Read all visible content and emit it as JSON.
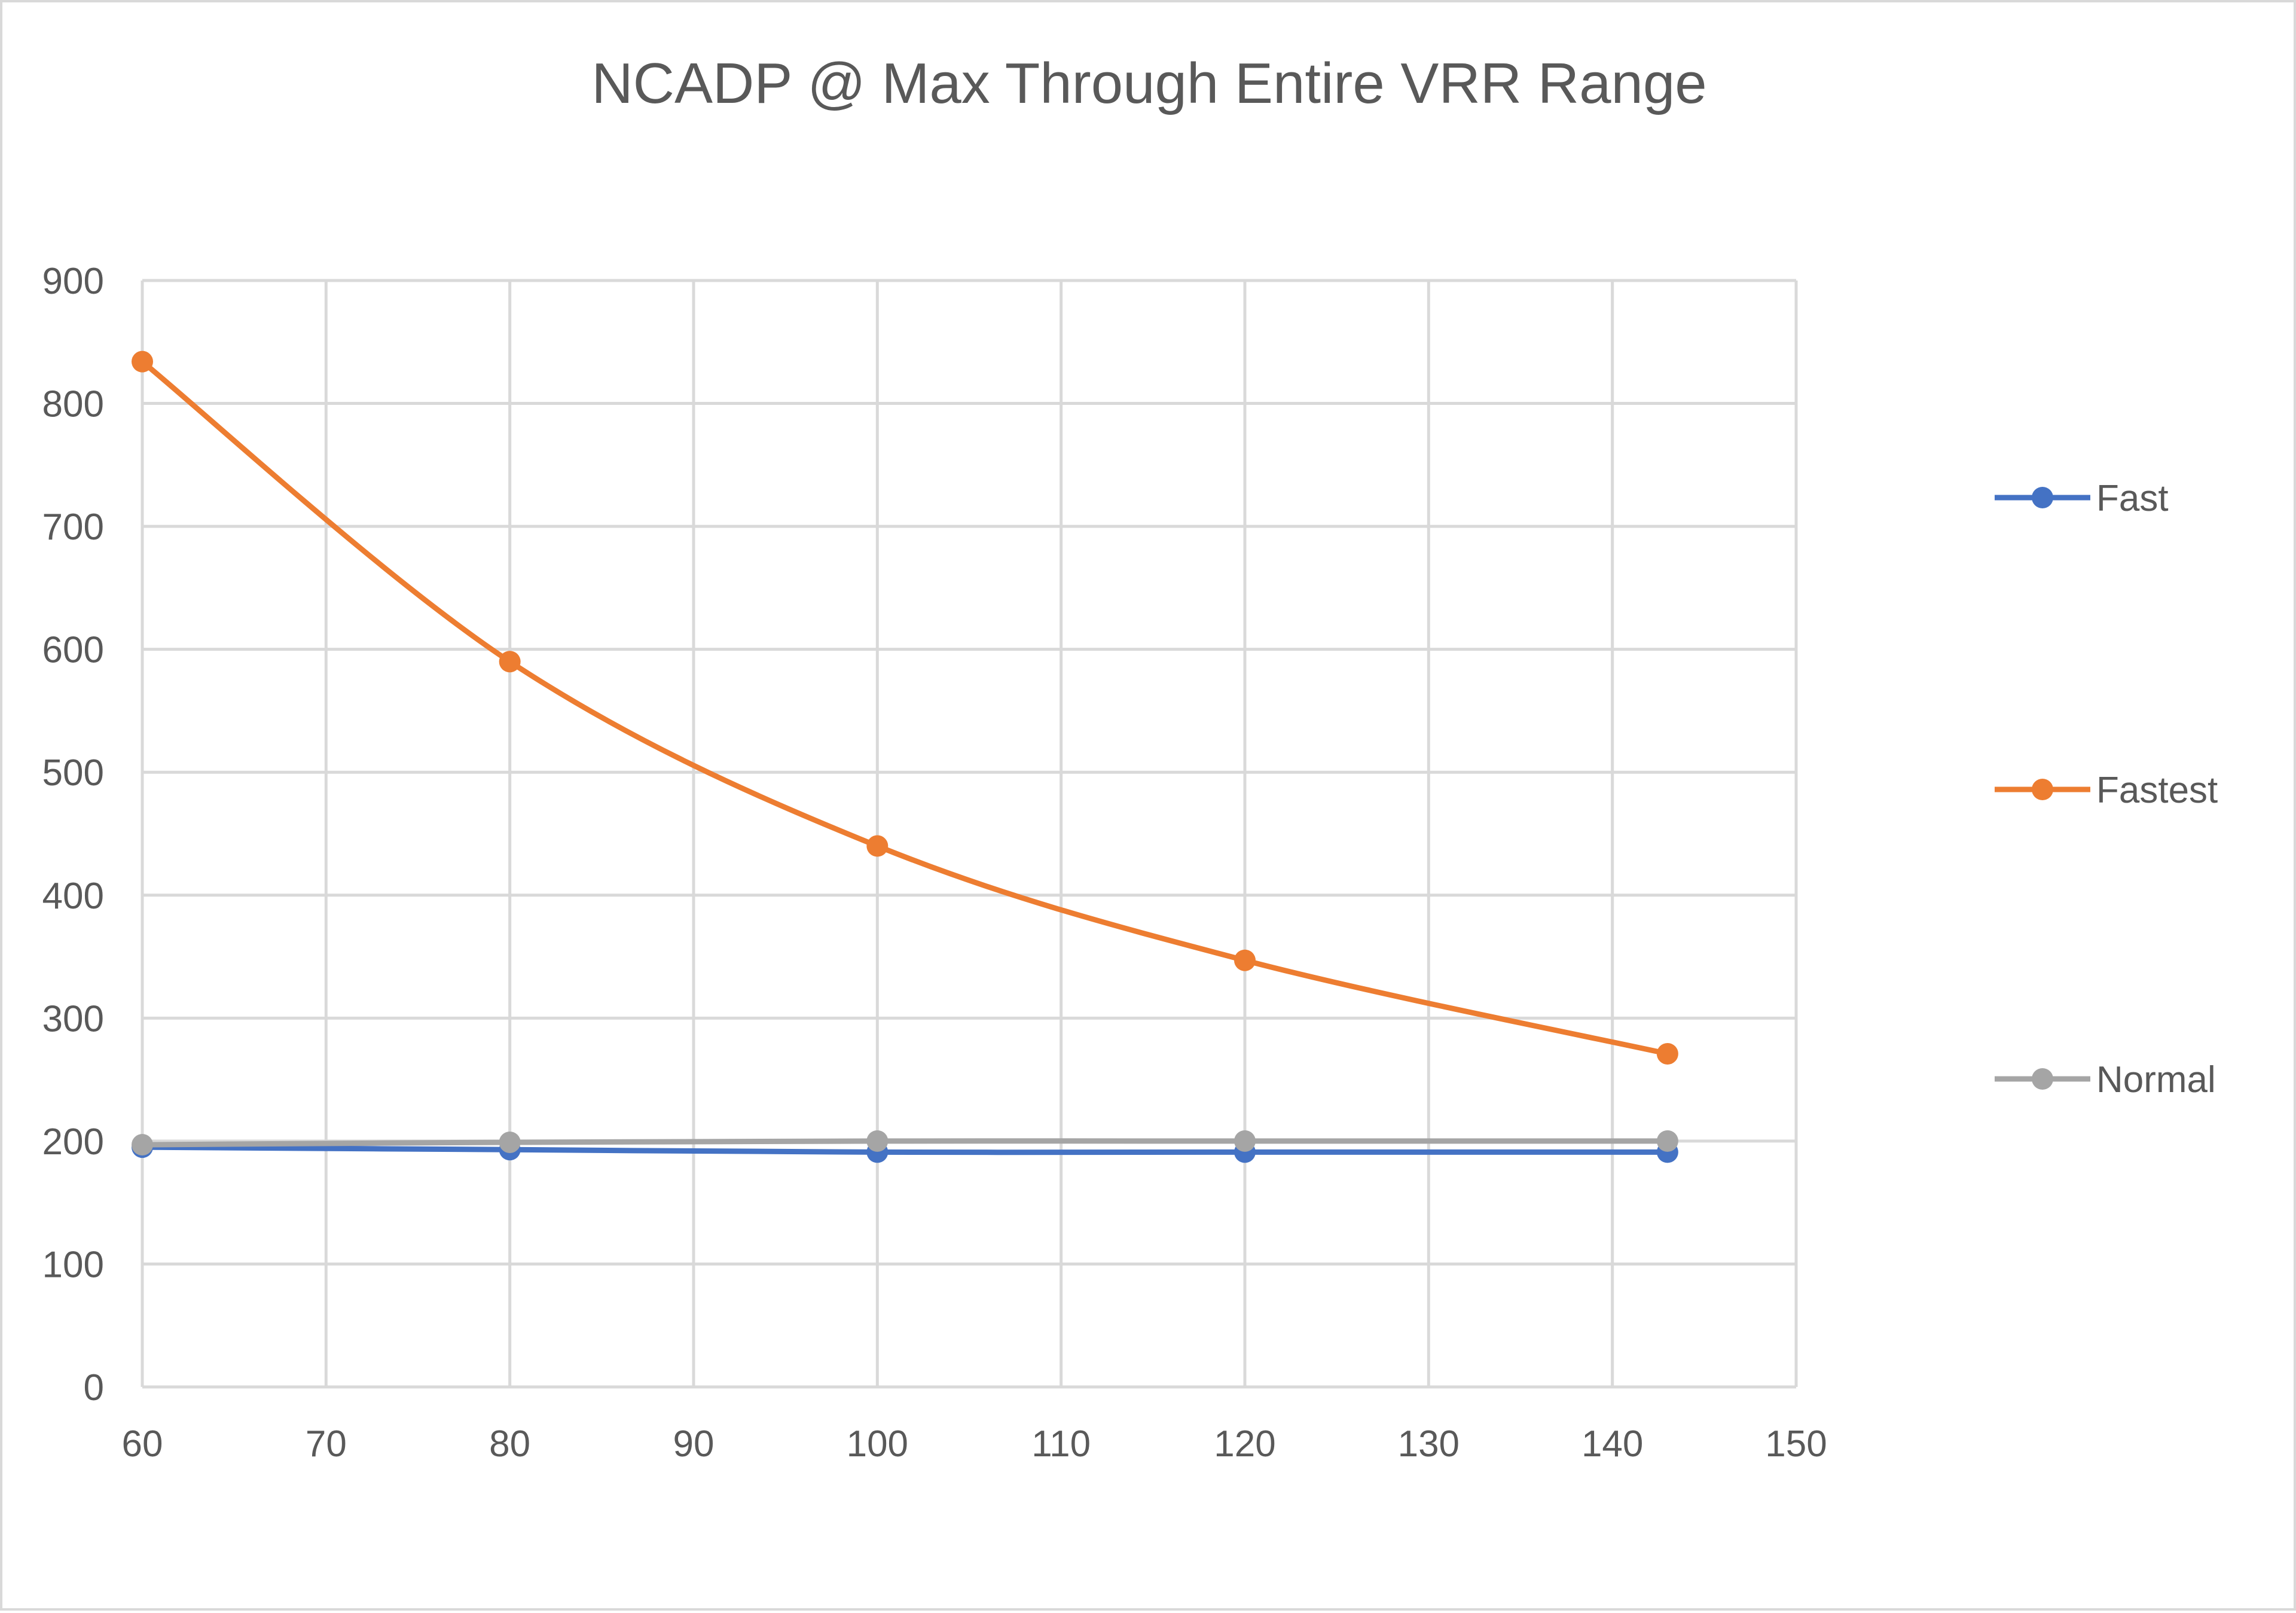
{
  "chart_data": {
    "type": "line",
    "title": "NCADP @ Max Through Entire VRR Range",
    "xlabel": "",
    "ylabel": "",
    "xlim": [
      60,
      150
    ],
    "ylim": [
      0,
      900
    ],
    "x_ticks": [
      60,
      70,
      80,
      90,
      100,
      110,
      120,
      130,
      140,
      150
    ],
    "y_ticks": [
      0,
      100,
      200,
      300,
      400,
      500,
      600,
      700,
      800,
      900
    ],
    "grid": true,
    "legend_position": "right",
    "x": [
      60,
      80,
      100,
      120,
      143
    ],
    "series": [
      {
        "name": "Fast",
        "color": "#4472c4",
        "values": [
          195,
          193,
          191,
          191,
          191
        ]
      },
      {
        "name": "Fastest",
        "color": "#ed7d31",
        "values": [
          834,
          590,
          440,
          347,
          271
        ]
      },
      {
        "name": "Normal",
        "color": "#a5a5a5",
        "values": [
          197,
          199,
          200,
          200,
          200
        ]
      }
    ]
  }
}
